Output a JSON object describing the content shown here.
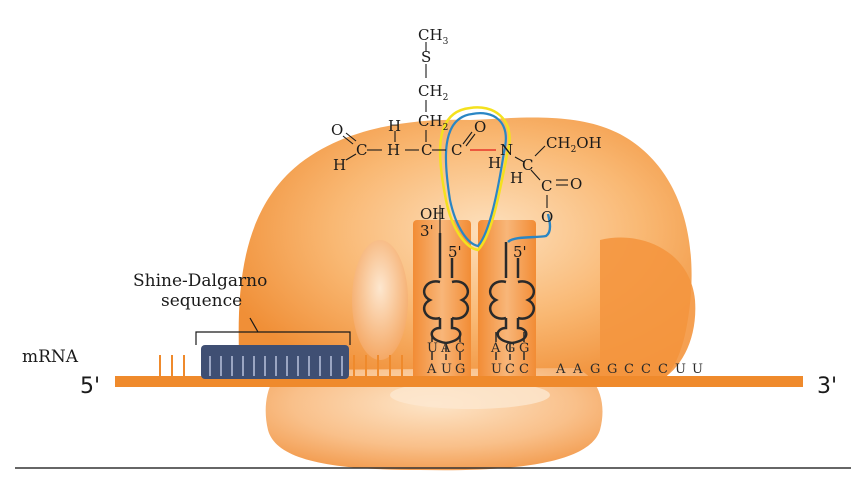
{
  "labels": {
    "mrna": "mRNA",
    "five_prime_left": "5'",
    "three_prime_right": "3'",
    "shine_dalgarno_line1": "Shine-Dalgarno",
    "shine_dalgarno_line2": "sequence"
  },
  "trna_left": {
    "oh": "OH",
    "three_prime": "3'",
    "five_prime": "5'",
    "anticodon": [
      "U",
      "A",
      "C"
    ],
    "codon": [
      "A",
      "U",
      "G"
    ]
  },
  "trna_right": {
    "five_prime": "5'",
    "anticodon": [
      "A",
      "G",
      "G"
    ],
    "codon": [
      "U",
      "C",
      "C"
    ]
  },
  "downstream_sequence": [
    "A",
    "A",
    "G",
    "G",
    "C",
    "C",
    "C",
    "U",
    "U"
  ],
  "molecule": {
    "ch3": "CH",
    "ch3_sub": "3",
    "s": "S",
    "ch2a": "CH",
    "ch2a_sub": "2",
    "ch2b": "CH",
    "ch2b_sub": "2",
    "h_top": "H",
    "o_left": "O",
    "c_ald": "C",
    "h_ald": "H",
    "h_mid": "H",
    "c_alpha": "C",
    "c_carbonyl": "C",
    "o_carbonyl": "O",
    "n": "N",
    "h_n": "H",
    "c_ser": "C",
    "h_ser": "H",
    "ch2oh": "CH",
    "ch2oh_sub": "2",
    "ch2oh_tail": "OH",
    "c_ester": "C",
    "o_ester_dbl": "O",
    "o_ester": "O"
  },
  "colors": {
    "ribosome": "#f6a55b",
    "mrna_strand": "#ef8a2c",
    "shine_dalgarno_box": "#3f4f73",
    "peptide_bond": "#e8372a",
    "highlight_yellow": "#f4e11e",
    "highlight_blue": "#2a86c4"
  }
}
